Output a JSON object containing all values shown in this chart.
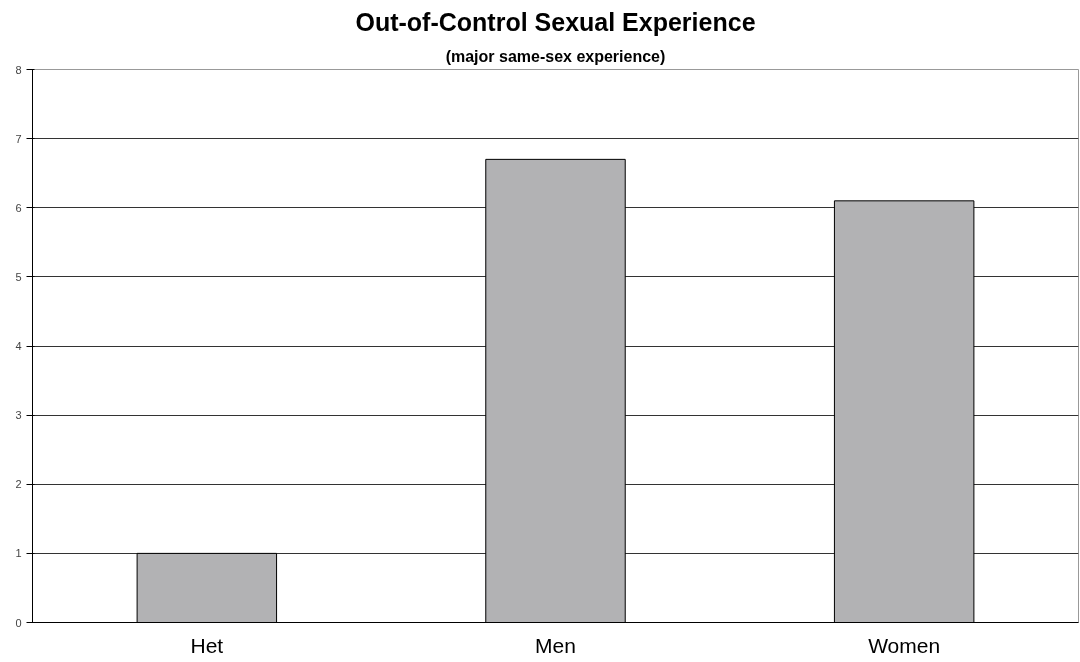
{
  "chart_data": {
    "type": "bar",
    "title": "Out-of-Control Sexual Experience",
    "subtitle": "(major same-sex experience)",
    "categories": [
      "Het",
      "Men",
      "Women"
    ],
    "values": [
      1.0,
      6.7,
      6.1
    ],
    "color": "#b2b2b4",
    "ylim": [
      0,
      8
    ],
    "yticks": [
      0,
      1,
      2,
      3,
      4,
      5,
      6,
      7,
      8
    ],
    "grid": "y"
  }
}
